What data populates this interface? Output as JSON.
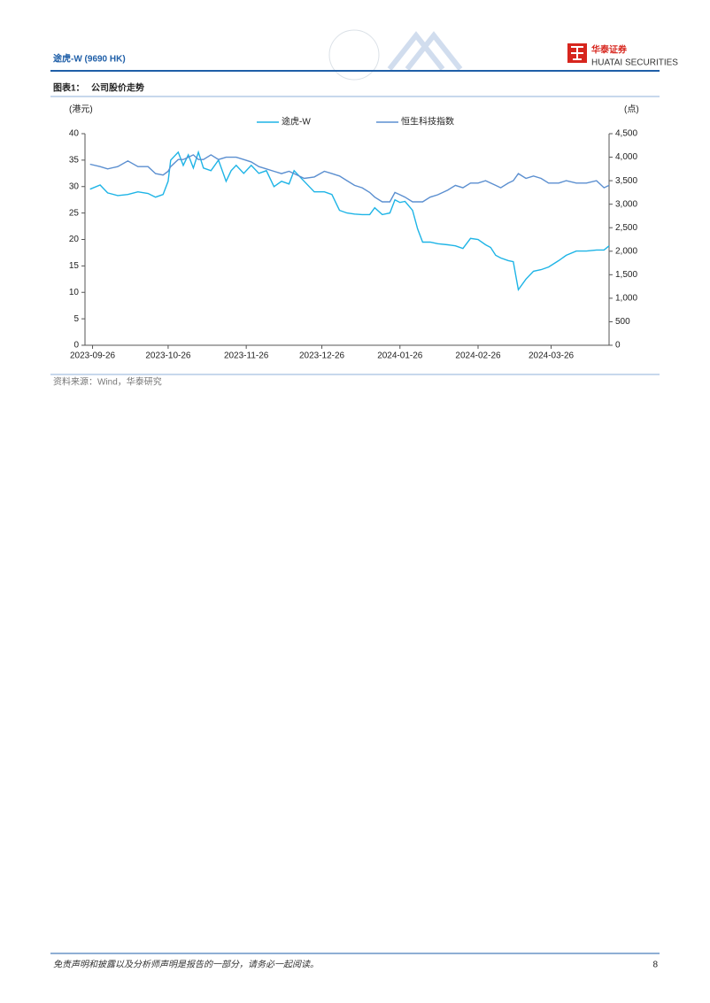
{
  "header": {
    "title": "途虎-W (9690 HK)",
    "logo_cn": "华泰证券",
    "logo_en": "HUATAI SECURITIES"
  },
  "figure": {
    "label": "图表1：",
    "title": "公司股价走势"
  },
  "chart_data": {
    "type": "line",
    "y_label": "(港元)",
    "y2_label": "(点)",
    "x": [
      "2023-09-25",
      "2023-09-29",
      "2023-10-02",
      "2023-10-06",
      "2023-10-10",
      "2023-10-14",
      "2023-10-18",
      "2023-10-21",
      "2023-10-24",
      "2023-10-26",
      "2023-10-27",
      "2023-10-30",
      "2023-11-01",
      "2023-11-03",
      "2023-11-05",
      "2023-11-07",
      "2023-11-09",
      "2023-11-12",
      "2023-11-15",
      "2023-11-18",
      "2023-11-20",
      "2023-11-22",
      "2023-11-25",
      "2023-11-28",
      "2023-12-01",
      "2023-12-04",
      "2023-12-07",
      "2023-12-10",
      "2023-12-13",
      "2023-12-15",
      "2023-12-19",
      "2023-12-23",
      "2023-12-27",
      "2023-12-30",
      "2024-01-02",
      "2024-01-05",
      "2024-01-08",
      "2024-01-11",
      "2024-01-14",
      "2024-01-16",
      "2024-01-19",
      "2024-01-22",
      "2024-01-24",
      "2024-01-26",
      "2024-01-28",
      "2024-01-31",
      "2024-02-02",
      "2024-02-04",
      "2024-02-07",
      "2024-02-10",
      "2024-02-14",
      "2024-02-17",
      "2024-02-20",
      "2024-02-23",
      "2024-02-26",
      "2024-02-29",
      "2024-03-02",
      "2024-03-04",
      "2024-03-06",
      "2024-03-09",
      "2024-03-11",
      "2024-03-13",
      "2024-03-16",
      "2024-03-19",
      "2024-03-22",
      "2024-03-25",
      "2024-03-29",
      "2024-04-01",
      "2024-04-05",
      "2024-04-09",
      "2024-04-13",
      "2024-04-16",
      "2024-04-18"
    ],
    "series": [
      {
        "name": "途虎-W",
        "color": "#1eb4e6",
        "values": [
          29.5,
          30.3,
          28.8,
          28.3,
          28.5,
          29,
          28.7,
          28,
          28.5,
          31,
          35,
          36.5,
          34,
          36,
          33.5,
          36.5,
          33.5,
          33,
          35,
          31,
          33,
          34,
          32.5,
          34,
          32.5,
          33,
          30,
          31,
          30.5,
          33,
          31,
          29,
          29,
          28.5,
          25.5,
          25,
          24.8,
          24.7,
          24.7,
          26,
          24.7,
          25,
          27.5,
          27,
          27.2,
          25.5,
          22,
          19.5,
          19.5,
          19.2,
          19,
          18.8,
          18.3,
          20.2,
          20,
          19,
          18.5,
          17,
          16.5,
          16,
          15.8,
          10.5,
          12.5,
          14,
          14.3,
          14.8,
          16,
          17,
          17.8,
          17.8,
          18,
          18,
          18.8
        ]
      },
      {
        "name": "恒生科技指数",
        "color": "#5b8fd0",
        "axis": "y2",
        "values": [
          3850,
          3800,
          3750,
          3800,
          3920,
          3800,
          3800,
          3650,
          3620,
          3700,
          3800,
          3950,
          3950,
          4000,
          4050,
          3950,
          3950,
          4050,
          3950,
          4000,
          4000,
          4000,
          3950,
          3900,
          3800,
          3750,
          3700,
          3650,
          3700,
          3650,
          3550,
          3580,
          3700,
          3650,
          3600,
          3500,
          3400,
          3350,
          3250,
          3150,
          3050,
          3050,
          3250,
          3200,
          3150,
          3050,
          3050,
          3050,
          3150,
          3200,
          3300,
          3400,
          3350,
          3450,
          3450,
          3500,
          3450,
          3400,
          3350,
          3450,
          3500,
          3650,
          3550,
          3600,
          3550,
          3450,
          3450,
          3500,
          3450,
          3450,
          3500,
          3350,
          3400
        ]
      }
    ],
    "xlim": [
      "2023-09-23",
      "2024-04-18"
    ],
    "xticks": [
      "2023-09-26",
      "2023-10-26",
      "2023-11-26",
      "2023-12-26",
      "2024-01-26",
      "2024-02-26",
      "2024-03-26"
    ],
    "ylim": [
      0,
      40
    ],
    "yticks": [
      0,
      5,
      10,
      15,
      20,
      25,
      30,
      35,
      40
    ],
    "y2lim": [
      0,
      4500
    ],
    "y2ticks": [
      0,
      500,
      {
        "value": 1000,
        "label": "1,000"
      },
      {
        "value": 1500,
        "label": "1,500"
      },
      {
        "value": 2000,
        "label": "2,000"
      },
      {
        "value": 2500,
        "label": "2,500"
      },
      {
        "value": 3000,
        "label": "3,000"
      },
      {
        "value": 3500,
        "label": "3,500"
      },
      {
        "value": 4000,
        "label": "4,000"
      },
      {
        "value": 4500,
        "label": "4,500"
      }
    ],
    "legend": "top",
    "grid": false
  },
  "source": "资料来源：Wind，华泰研究",
  "footer": {
    "disclaimer": "免责声明和披露以及分析师声明是报告的一部分，请务必一起阅读。",
    "page": 8
  }
}
